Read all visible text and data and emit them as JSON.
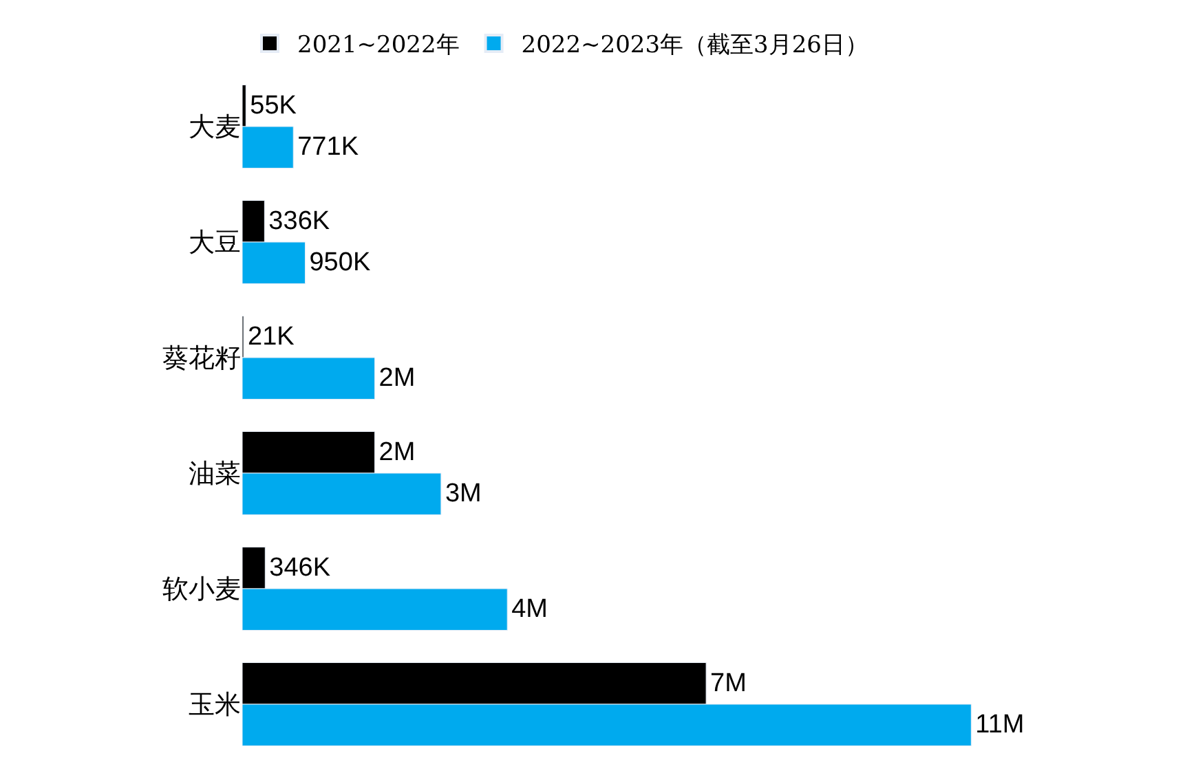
{
  "chart_data": {
    "type": "bar",
    "orientation": "horizontal",
    "legend": "top left",
    "categories": [
      "大麦",
      "大豆",
      "葵花籽",
      "油菜",
      "软小麦",
      "玉米"
    ],
    "series": [
      {
        "name": "2021~2022年",
        "color": "#000000",
        "values": [
          55000,
          336000,
          21000,
          2000000,
          346000,
          7000000
        ],
        "value_labels": [
          "55K",
          "336K",
          "21K",
          "2M",
          "346K",
          "7M"
        ]
      },
      {
        "name": "2022~2023年（截至3月26日）",
        "color": "#00aaee",
        "values": [
          771000,
          950000,
          2000000,
          3000000,
          4000000,
          11000000
        ],
        "value_labels": [
          "771K",
          "950K",
          "2M",
          "3M",
          "4M",
          "11M"
        ]
      }
    ]
  }
}
